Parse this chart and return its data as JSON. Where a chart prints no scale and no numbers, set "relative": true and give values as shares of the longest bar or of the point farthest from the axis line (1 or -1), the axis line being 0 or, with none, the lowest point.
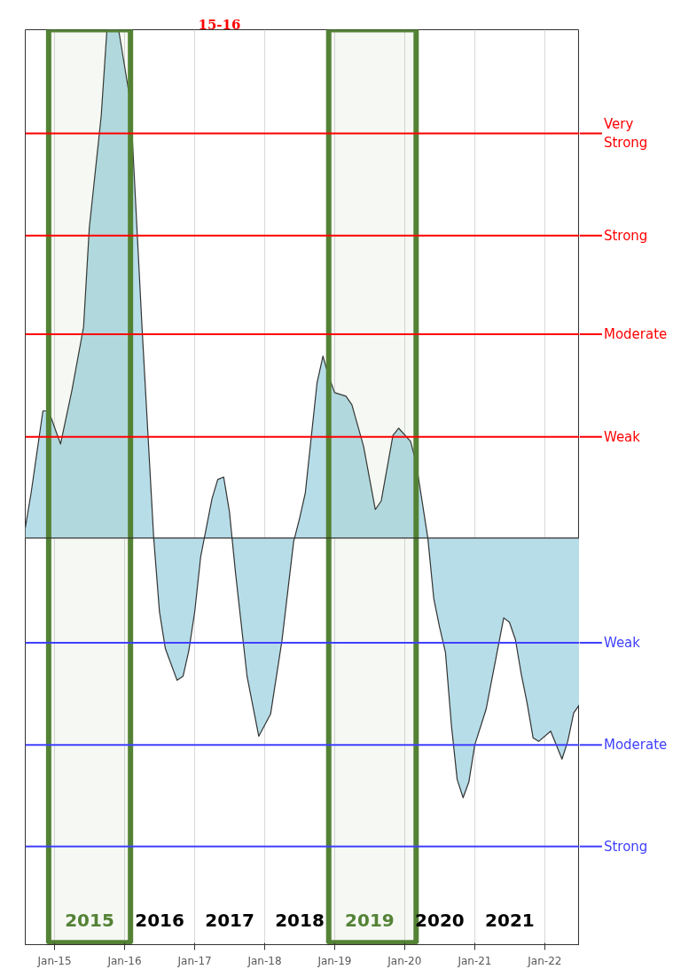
{
  "chart_data": {
    "type": "area",
    "title": "15-16",
    "relative": true,
    "grid": "x",
    "x": [
      "2014-08",
      "2014-09",
      "2014-11",
      "2014-12",
      "2015-02",
      "2015-04",
      "2015-06",
      "2015-07",
      "2015-09",
      "2015-10",
      "2015-12",
      "2016-02",
      "2016-04",
      "2016-06",
      "2016-07",
      "2016-08",
      "2016-10",
      "2016-11",
      "2016-12",
      "2017-01",
      "2017-02",
      "2017-04",
      "2017-05",
      "2017-06",
      "2017-07",
      "2017-08",
      "2017-10",
      "2017-12",
      "2018-02",
      "2018-04",
      "2018-06",
      "2018-07",
      "2018-08",
      "2018-10",
      "2018-11",
      "2018-12",
      "2019-01",
      "2019-03",
      "2019-04",
      "2019-06",
      "2019-08",
      "2019-09",
      "2019-11",
      "2019-12",
      "2020-02",
      "2020-03",
      "2020-05",
      "2020-06",
      "2020-07",
      "2020-08",
      "2020-09",
      "2020-10",
      "2020-11",
      "2020-12",
      "2021-01",
      "2021-03",
      "2021-06",
      "2021-07",
      "2021-08",
      "2021-09",
      "2021-10",
      "2021-11",
      "2021-12",
      "2022-02",
      "2022-04",
      "2022-05",
      "2022-06",
      "2022-07"
    ],
    "series": [
      {
        "color": "#b7dde8",
        "values": [
          0.02,
          0.09,
          0.25,
          0.25,
          0.185,
          0.29,
          0.415,
          0.61,
          0.83,
          1.0,
          1.0,
          0.857,
          0.415,
          0.0,
          -0.145,
          -0.218,
          -0.28,
          -0.272,
          -0.222,
          -0.145,
          -0.037,
          0.077,
          0.115,
          0.12,
          0.052,
          -0.066,
          -0.272,
          -0.39,
          -0.346,
          -0.202,
          -0.007,
          0.037,
          0.089,
          0.305,
          0.358,
          0.318,
          0.286,
          0.279,
          0.262,
          0.18,
          0.056,
          0.073,
          0.202,
          0.216,
          0.19,
          0.148,
          0.0,
          -0.119,
          -0.175,
          -0.225,
          -0.368,
          -0.475,
          -0.511,
          -0.48,
          -0.407,
          -0.337,
          -0.157,
          -0.166,
          -0.2,
          -0.269,
          -0.325,
          -0.393,
          -0.4,
          -0.38,
          -0.435,
          -0.4,
          -0.344,
          -0.328
        ]
      }
    ],
    "xlim": [
      "2014-08",
      "2022-07"
    ],
    "xticks": [
      {
        "value": "2015-01",
        "label": "Jan-15"
      },
      {
        "value": "2016-01",
        "label": "Jan-16"
      },
      {
        "value": "2017-01",
        "label": "Jan-17"
      },
      {
        "value": "2018-01",
        "label": "Jan-18"
      },
      {
        "value": "2019-01",
        "label": "Jan-19"
      },
      {
        "value": "2020-01",
        "label": "Jan-20"
      },
      {
        "value": "2021-01",
        "label": "Jan-21"
      },
      {
        "value": "2022-01",
        "label": "Jan-22"
      }
    ],
    "ref_lines": [
      {
        "axis": "y",
        "value": 0.796,
        "label": "Very Strong",
        "color": "#ff0000"
      },
      {
        "axis": "y",
        "value": 0.595,
        "label": "Strong",
        "color": "#ff0000"
      },
      {
        "axis": "y",
        "value": 0.401,
        "label": "Moderate",
        "color": "#ff0000"
      },
      {
        "axis": "y",
        "value": 0.199,
        "label": "Weak",
        "color": "#ff0000"
      },
      {
        "axis": "y",
        "value": -0.206,
        "label": "Weak",
        "color": "#4040ff"
      },
      {
        "axis": "y",
        "value": -0.407,
        "label": "Moderate",
        "color": "#4040ff"
      },
      {
        "axis": "y",
        "value": -0.607,
        "label": "Strong",
        "color": "#4040ff"
      }
    ],
    "bands": [
      {
        "axis": "x",
        "from": "2014-12",
        "to": "2016-02",
        "color": "#548235"
      },
      {
        "axis": "x",
        "from": "2018-12",
        "to": "2020-03",
        "color": "#548235"
      }
    ],
    "annotations": [
      "2015",
      "2016",
      "2017",
      "2018",
      "2019",
      "2020",
      "2021"
    ]
  }
}
